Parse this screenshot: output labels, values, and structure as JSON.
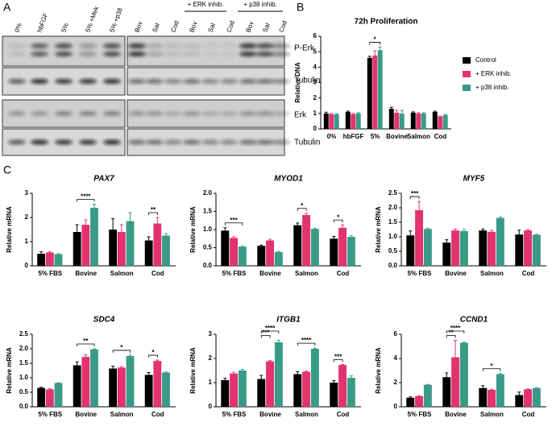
{
  "panels": [
    "A",
    "B",
    "C"
  ],
  "blot": {
    "lanes": [
      "0%",
      "hbFGF",
      "5%",
      "5% +Mek",
      "5% +p38",
      "Bov",
      "Sal",
      "Cod",
      "Bov",
      "Sal",
      "Cod",
      "Bov",
      "Sal",
      "Cod"
    ],
    "groups": [
      "+ ERK inhib.",
      "+ p38 inhib."
    ],
    "rows": [
      "P-Erk",
      "Tubulin",
      "Erk",
      "Tubulin"
    ]
  },
  "chart_data": [
    {
      "type": "bar",
      "title": "72h Proliferation",
      "ylabel": "Relative DNA",
      "legend": "right",
      "categories": [
        "0%",
        "hbFGF",
        "5%",
        "Bovine",
        "Salmon",
        "Cod"
      ],
      "ylim": [
        0,
        6
      ],
      "yticks": [
        0,
        1,
        2,
        3,
        4,
        5,
        6
      ],
      "series": [
        {
          "name": "Control",
          "color": "#000000",
          "values": [
            1.0,
            1.1,
            4.6,
            1.3,
            1.05,
            1.1
          ],
          "errors": [
            0.08,
            0.05,
            0.1,
            0.1,
            0.05,
            0.05
          ]
        },
        {
          "name": "+ ERK inhib.",
          "color": "#e2336f",
          "values": [
            0.95,
            0.95,
            4.75,
            1.05,
            1.0,
            0.8
          ],
          "errors": [
            0.05,
            0.05,
            0.3,
            0.15,
            0.05,
            0.03
          ]
        },
        {
          "name": "+ p38 inhib.",
          "color": "#3a9a88",
          "values": [
            0.95,
            1.0,
            5.1,
            1.0,
            1.0,
            0.9
          ],
          "errors": [
            0.05,
            0.05,
            0.2,
            0.2,
            0.05,
            0.03
          ]
        }
      ],
      "annotations": [
        {
          "text": "*",
          "category": 2,
          "between": [
            0,
            2
          ]
        }
      ]
    },
    {
      "type": "bar",
      "title": "PAX7",
      "ylabel": "Relative mRNA",
      "categories": [
        "5% FBS",
        "Bovine",
        "Salmon",
        "Cod"
      ],
      "ylim": [
        0,
        3
      ],
      "yticks": [
        0,
        1,
        2,
        3
      ],
      "series": [
        {
          "name": "Control",
          "color": "#000000",
          "values": [
            0.5,
            1.4,
            1.5,
            1.05
          ],
          "errors": [
            0.08,
            0.3,
            0.45,
            0.15
          ]
        },
        {
          "name": "+ ERK inhib.",
          "color": "#e2336f",
          "values": [
            0.55,
            1.7,
            1.4,
            1.75
          ],
          "errors": [
            0.03,
            0.2,
            0.3,
            0.25
          ]
        },
        {
          "name": "+ p38 inhib.",
          "color": "#3a9a88",
          "values": [
            0.48,
            2.4,
            1.85,
            1.25
          ],
          "errors": [
            0.02,
            0.15,
            0.35,
            0.08
          ]
        }
      ],
      "annotations": [
        {
          "text": "****",
          "category": 1,
          "between": [
            0,
            2
          ]
        },
        {
          "text": "**",
          "category": 3,
          "between": [
            0,
            1
          ]
        }
      ]
    },
    {
      "type": "bar",
      "title": "MYOD1",
      "ylabel": "Relative mRNA",
      "categories": [
        "5% FBS",
        "Bovine",
        "Salmon",
        "Cod"
      ],
      "ylim": [
        0,
        2
      ],
      "yticks": [
        {
          "value": 0,
          "label": "0.0"
        },
        {
          "value": 0.5,
          "label": "0.5"
        },
        {
          "value": 1,
          "label": "1.0"
        },
        {
          "value": 1.5,
          "label": "1.5"
        },
        {
          "value": 2,
          "label": "2.0"
        }
      ],
      "series": [
        {
          "name": "Control",
          "color": "#000000",
          "values": [
            0.97,
            0.55,
            1.12,
            0.75
          ],
          "errors": [
            0.08,
            0.02,
            0.06,
            0.06
          ]
        },
        {
          "name": "+ ERK inhib.",
          "color": "#e2336f",
          "values": [
            0.77,
            0.7,
            1.4,
            1.05
          ],
          "errors": [
            0.03,
            0.03,
            0.05,
            0.08
          ]
        },
        {
          "name": "+ p38 inhib.",
          "color": "#3a9a88",
          "values": [
            0.53,
            0.38,
            1.02,
            0.8
          ],
          "errors": [
            0.01,
            0.02,
            0.02,
            0.03
          ]
        }
      ],
      "annotations": [
        {
          "text": "***",
          "category": 0,
          "between": [
            0,
            2
          ]
        },
        {
          "text": "*",
          "category": 2,
          "between": [
            0,
            1
          ]
        },
        {
          "text": "*",
          "category": 3,
          "between": [
            0,
            1
          ]
        }
      ]
    },
    {
      "type": "bar",
      "title": "MYF5",
      "ylabel": "Relative mRNA",
      "categories": [
        "5% FBS",
        "Bovine",
        "Salmon",
        "Cod"
      ],
      "ylim": [
        0,
        2.5
      ],
      "yticks": [
        {
          "value": 0,
          "label": "0.0"
        },
        {
          "value": 0.5,
          "label": "0.5"
        },
        {
          "value": 1,
          "label": "1.0"
        },
        {
          "value": 1.5,
          "label": "1.5"
        },
        {
          "value": 2,
          "label": "2.0"
        },
        {
          "value": 2.5,
          "label": "2.5"
        }
      ],
      "series": [
        {
          "name": "Control",
          "color": "#000000",
          "values": [
            1.05,
            0.8,
            1.22,
            1.08
          ],
          "errors": [
            0.15,
            0.1,
            0.05,
            0.15
          ]
        },
        {
          "name": "+ ERK inhib.",
          "color": "#e2336f",
          "values": [
            1.92,
            1.22,
            1.17,
            1.22
          ],
          "errors": [
            0.3,
            0.05,
            0.05,
            0.03
          ]
        },
        {
          "name": "+ p38 inhib.",
          "color": "#3a9a88",
          "values": [
            1.27,
            1.2,
            1.65,
            1.07
          ],
          "errors": [
            0.03,
            0.05,
            0.03,
            0.02
          ]
        }
      ],
      "annotations": [
        {
          "text": "***",
          "category": 0,
          "between": [
            0,
            1
          ]
        }
      ]
    },
    {
      "type": "bar",
      "title": "SDC4",
      "ylabel": "Relative mRNA",
      "categories": [
        "5% FBS",
        "Bovine",
        "Salmon",
        "Cod"
      ],
      "ylim": [
        0,
        2.5
      ],
      "yticks": [
        {
          "value": 0,
          "label": "0.0"
        },
        {
          "value": 0.5,
          "label": "0.5"
        },
        {
          "value": 1,
          "label": "1.0"
        },
        {
          "value": 1.5,
          "label": "1.5"
        },
        {
          "value": 2,
          "label": "2.0"
        },
        {
          "value": 2.5,
          "label": "2.5"
        }
      ],
      "series": [
        {
          "name": "Control",
          "color": "#000000",
          "values": [
            0.65,
            1.43,
            1.32,
            1.1
          ],
          "errors": [
            0.02,
            0.12,
            0.08,
            0.08
          ]
        },
        {
          "name": "+ ERK inhib.",
          "color": "#e2336f",
          "values": [
            0.6,
            1.72,
            1.35,
            1.58
          ],
          "errors": [
            0.02,
            0.07,
            0.03,
            0.03
          ]
        },
        {
          "name": "+ p38 inhib.",
          "color": "#3a9a88",
          "values": [
            0.82,
            1.98,
            1.75,
            1.18
          ],
          "errors": [
            0.01,
            0.02,
            0.03,
            0.02
          ]
        }
      ],
      "annotations": [
        {
          "text": "**",
          "category": 1,
          "between": [
            0,
            2
          ]
        },
        {
          "text": "*",
          "category": 2,
          "between": [
            0,
            2
          ]
        },
        {
          "text": "*",
          "category": 3,
          "between": [
            0,
            1
          ]
        }
      ]
    },
    {
      "type": "bar",
      "title": "ITGB1",
      "ylabel": "Relative mRNA",
      "categories": [
        "5% FBS",
        "Bovine",
        "Salmon",
        "Cod"
      ],
      "ylim": [
        0,
        3
      ],
      "yticks": [
        0,
        1,
        2,
        3
      ],
      "series": [
        {
          "name": "Control",
          "color": "#000000",
          "values": [
            1.1,
            1.15,
            1.35,
            1.0
          ],
          "errors": [
            0.08,
            0.15,
            0.1,
            0.08
          ]
        },
        {
          "name": "+ ERK inhib.",
          "color": "#e2336f",
          "values": [
            1.38,
            1.88,
            1.45,
            1.73
          ],
          "errors": [
            0.05,
            0.03,
            0.03,
            0.02
          ]
        },
        {
          "name": "+ p38 inhib.",
          "color": "#3a9a88",
          "values": [
            1.5,
            2.67,
            2.4,
            1.2
          ],
          "errors": [
            0.05,
            0.08,
            0.03,
            0.08
          ]
        }
      ],
      "annotations": [
        {
          "text": "***",
          "category": 1,
          "between": [
            0,
            1
          ]
        },
        {
          "text": "****",
          "category": 1,
          "between": [
            0,
            2
          ]
        },
        {
          "text": "****",
          "category": 2,
          "between": [
            0,
            2
          ]
        },
        {
          "text": "***",
          "category": 3,
          "between": [
            0,
            1
          ]
        }
      ]
    },
    {
      "type": "bar",
      "title": "CCND1",
      "ylabel": "Relative mRNA",
      "categories": [
        "5% FBS",
        "Bovine",
        "Salmon",
        "Cod"
      ],
      "ylim": [
        0,
        6
      ],
      "yticks": [
        0,
        2,
        4,
        6
      ],
      "series": [
        {
          "name": "Control",
          "color": "#000000",
          "values": [
            0.75,
            2.45,
            1.55,
            0.97
          ],
          "errors": [
            0.07,
            0.35,
            0.2,
            0.25
          ]
        },
        {
          "name": "+ ERK inhib.",
          "color": "#e2336f",
          "values": [
            0.88,
            4.1,
            1.4,
            1.45
          ],
          "errors": [
            0.03,
            1.4,
            0.05,
            0.03
          ]
        },
        {
          "name": "+ p38 inhib.",
          "color": "#3a9a88",
          "values": [
            1.82,
            5.3,
            2.7,
            1.55
          ],
          "errors": [
            0.03,
            0.05,
            0.05,
            0.03
          ]
        }
      ],
      "annotations": [
        {
          "text": "**",
          "category": 1,
          "between": [
            0,
            1
          ]
        },
        {
          "text": "****",
          "category": 1,
          "between": [
            0,
            2
          ]
        },
        {
          "text": "*",
          "category": 2,
          "between": [
            0,
            2
          ]
        }
      ]
    }
  ]
}
